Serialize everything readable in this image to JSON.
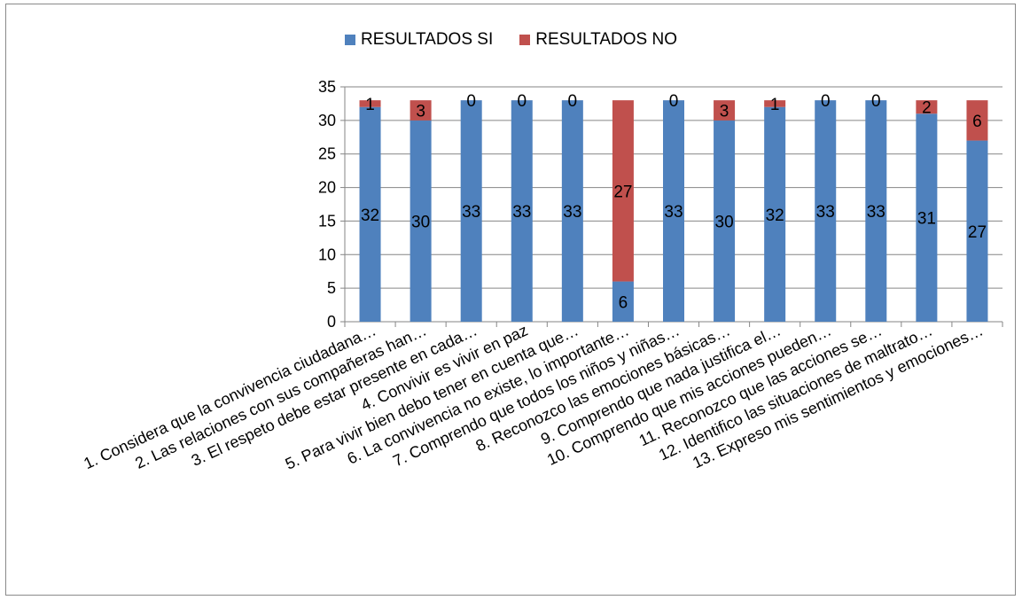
{
  "chart_data": {
    "type": "bar",
    "stacked": true,
    "categories": [
      "1. Considera que la convivencia ciudadana…",
      "2. Las relaciones con sus compañeras han…",
      "3. El respeto debe estar presente en cada…",
      "4. Convivir es vivir en paz",
      "5. Para vivir bien debo tener en cuenta que…",
      "6. La convivencia no existe, lo importante…",
      "7. Comprendo que todos los niños y niñas…",
      "8. Reconozco las emociones básicas…",
      "9. Comprendo que nada justifica el…",
      "10. Comprendo que mis acciones pueden…",
      "11. Reconozco que las acciones se…",
      "12. Identifico las situaciones de maltrato…",
      "13. Expreso mis sentimientos y emociones…"
    ],
    "series": [
      {
        "name": "RESULTADOS SI",
        "color": "#4F81BD",
        "values": [
          32,
          30,
          33,
          33,
          33,
          6,
          33,
          30,
          32,
          33,
          33,
          31,
          27
        ]
      },
      {
        "name": "RESULTADOS NO",
        "color": "#C0504D",
        "values": [
          1,
          3,
          0,
          0,
          0,
          27,
          0,
          3,
          1,
          0,
          0,
          2,
          6
        ]
      }
    ],
    "ylim": [
      0,
      35
    ],
    "yticks": [
      "0",
      "5",
      "10",
      "15",
      "20",
      "25",
      "30",
      "35"
    ],
    "grid": true,
    "legend_position": "top"
  }
}
